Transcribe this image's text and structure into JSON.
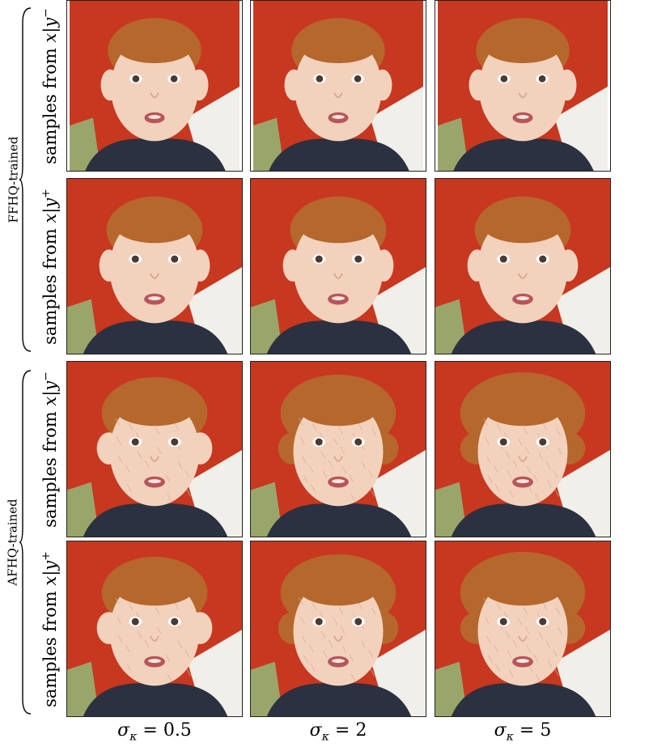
{
  "groups": [
    {
      "label": "FFHQ-trained"
    },
    {
      "label": "AFHQ-trained"
    }
  ],
  "rows": [
    {
      "prefix": "samples from ",
      "var": "x",
      "cond": "y",
      "sign": "−"
    },
    {
      "prefix": "samples from ",
      "var": "x",
      "cond": "y",
      "sign": "+"
    },
    {
      "prefix": "samples from ",
      "var": "x",
      "cond": "y",
      "sign": "−"
    },
    {
      "prefix": "samples from ",
      "var": "x",
      "cond": "y",
      "sign": "+"
    }
  ],
  "columns": [
    {
      "symbol": "σ",
      "sub": "κ",
      "value": "= 0.5"
    },
    {
      "symbol": "σ",
      "sub": "κ",
      "value": "= 2"
    },
    {
      "symbol": "σ",
      "sub": "κ",
      "value": "= 5"
    }
  ],
  "colors": {
    "background_red": "#c8371f",
    "skin": "#f3d2bd",
    "hair": "#b5672c",
    "jacket": "#2b3140",
    "eye": "#4a3a32",
    "mouth": "#b8555a"
  }
}
